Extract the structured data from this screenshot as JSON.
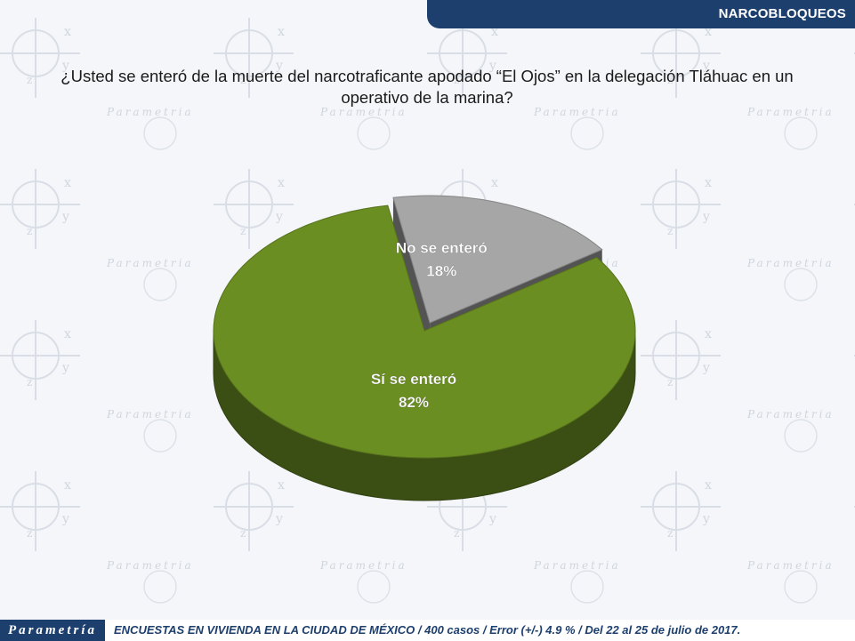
{
  "header": {
    "section_title": "NARCOBLOQUEOS"
  },
  "question": "¿Usted se enteró de la muerte del narcotraficante apodado “El Ojos” en la delegación Tláhuac en un operativo de la marina?",
  "chart_data": {
    "type": "pie",
    "title": "",
    "slices": [
      {
        "label": "No se enteró",
        "value": 18,
        "value_label": "18%",
        "color": "#a6a6a6"
      },
      {
        "label": "Sí se enteró",
        "value": 82,
        "value_label": "82%",
        "color": "#6b8e23"
      }
    ],
    "style": "3d",
    "exploded_slice": "No se enteró"
  },
  "footer": {
    "logo": "Parametría",
    "note": "ENCUESTAS EN VIVIENDA EN LA CIUDAD DE MÉXICO / 400 casos / Error (+/-) 4.9 % / Del 22 al 25 de julio de 2017."
  },
  "watermark": {
    "text": "Parametría"
  }
}
